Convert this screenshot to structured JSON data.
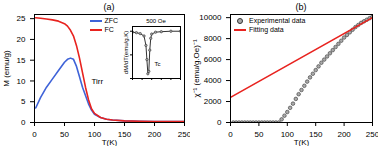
{
  "chart_data": [
    {
      "type": "line",
      "title": "(a)",
      "xlabel": "T(K)",
      "ylabel": "M (emu/g)",
      "xlim": [
        0,
        250
      ],
      "ylim": [
        0,
        26
      ],
      "xticks": [
        0,
        50,
        100,
        150,
        200,
        250
      ],
      "yticks": [
        0,
        5,
        10,
        15,
        20,
        25
      ],
      "legend": "top",
      "x": [
        2,
        10,
        20,
        30,
        40,
        50,
        55,
        60,
        65,
        70,
        75,
        80,
        85,
        90,
        95,
        100,
        110,
        120,
        130,
        150,
        175,
        200,
        225,
        250
      ],
      "series": [
        {
          "name": "ZFC",
          "color": "#3f63d8",
          "values": [
            3.5,
            6,
            8.5,
            10.5,
            12.5,
            14.5,
            15.2,
            15.5,
            15.2,
            13.5,
            11,
            8.5,
            6.5,
            4.5,
            3,
            2,
            1.2,
            0.8,
            0.6,
            0.4,
            0.3,
            0.25,
            0.2,
            0.2
          ]
        },
        {
          "name": "FC",
          "color": "#e8231f",
          "values": [
            25.2,
            25.1,
            24.9,
            24.7,
            24.4,
            23.8,
            23.2,
            22.2,
            20.8,
            18.5,
            15.5,
            12,
            8.5,
            5.5,
            3.3,
            2.2,
            1.2,
            0.8,
            0.6,
            0.4,
            0.3,
            0.25,
            0.2,
            0.2
          ]
        }
      ],
      "annotations": [
        {
          "text": "Tirr",
          "x": 95,
          "y": 10
        }
      ]
    },
    {
      "type": "line",
      "title": "500 Oe",
      "ylabel": "dM/dT(emu/g.K)",
      "marker": "circle",
      "tick_labels": false,
      "xlim": [
        0,
        250
      ],
      "ylim": [
        -1,
        0.1
      ],
      "xticks": [
        0,
        50,
        100,
        150,
        200,
        250
      ],
      "yticks": [
        -1,
        -0.5,
        0
      ],
      "x": [
        0,
        20,
        40,
        60,
        70,
        75,
        80,
        85,
        90,
        95,
        100,
        120,
        150,
        200,
        250
      ],
      "series": [
        {
          "color": "#333333",
          "values": [
            -0.02,
            -0.03,
            -0.05,
            -0.1,
            -0.3,
            -0.6,
            -0.9,
            -0.85,
            -0.4,
            -0.15,
            -0.06,
            -0.02,
            -0.01,
            0,
            0
          ]
        }
      ],
      "annotations": [
        {
          "text": "Tc",
          "x": 115,
          "y": -0.7
        }
      ]
    },
    {
      "type": "scatter",
      "title": "(b)",
      "xlabel": "T(K)",
      "ylabel": "χ⁻¹ (emu/g.Oe)⁻¹",
      "xlim": [
        0,
        250
      ],
      "ylim": [
        0,
        10300
      ],
      "xticks": [
        0,
        50,
        100,
        150,
        200,
        250
      ],
      "yticks": [
        0,
        2000,
        4000,
        6000,
        8000,
        10000
      ],
      "legend": "top-left",
      "series": [
        {
          "name": "Experimental data",
          "color": "#333333",
          "marker": "circle",
          "x": [
            5,
            10,
            15,
            20,
            25,
            30,
            35,
            40,
            45,
            50,
            55,
            60,
            65,
            70,
            75,
            80,
            85,
            90,
            95,
            100,
            105,
            110,
            115,
            120,
            125,
            130,
            135,
            140,
            145,
            150,
            155,
            160,
            165,
            170,
            175,
            180,
            185,
            190,
            195,
            200,
            205,
            210,
            215,
            220,
            225,
            230,
            235,
            240,
            245,
            250
          ],
          "values": [
            0,
            0,
            0,
            0,
            0,
            0,
            0,
            0,
            0,
            0,
            0,
            0,
            0,
            0,
            0,
            0,
            0,
            300,
            650,
            1000,
            1400,
            1800,
            2250,
            2700,
            3100,
            3500,
            3900,
            4300,
            4650,
            5000,
            5350,
            5700,
            6000,
            6300,
            6600,
            6900,
            7200,
            7500,
            7800,
            8100,
            8350,
            8600,
            8850,
            9100,
            9300,
            9500,
            9650,
            9800,
            9950,
            10100
          ]
        },
        {
          "name": "Fitting data",
          "color": "#e8231f",
          "type": "line",
          "x": [
            0,
            250
          ],
          "values": [
            2400,
            10000
          ]
        }
      ]
    }
  ]
}
